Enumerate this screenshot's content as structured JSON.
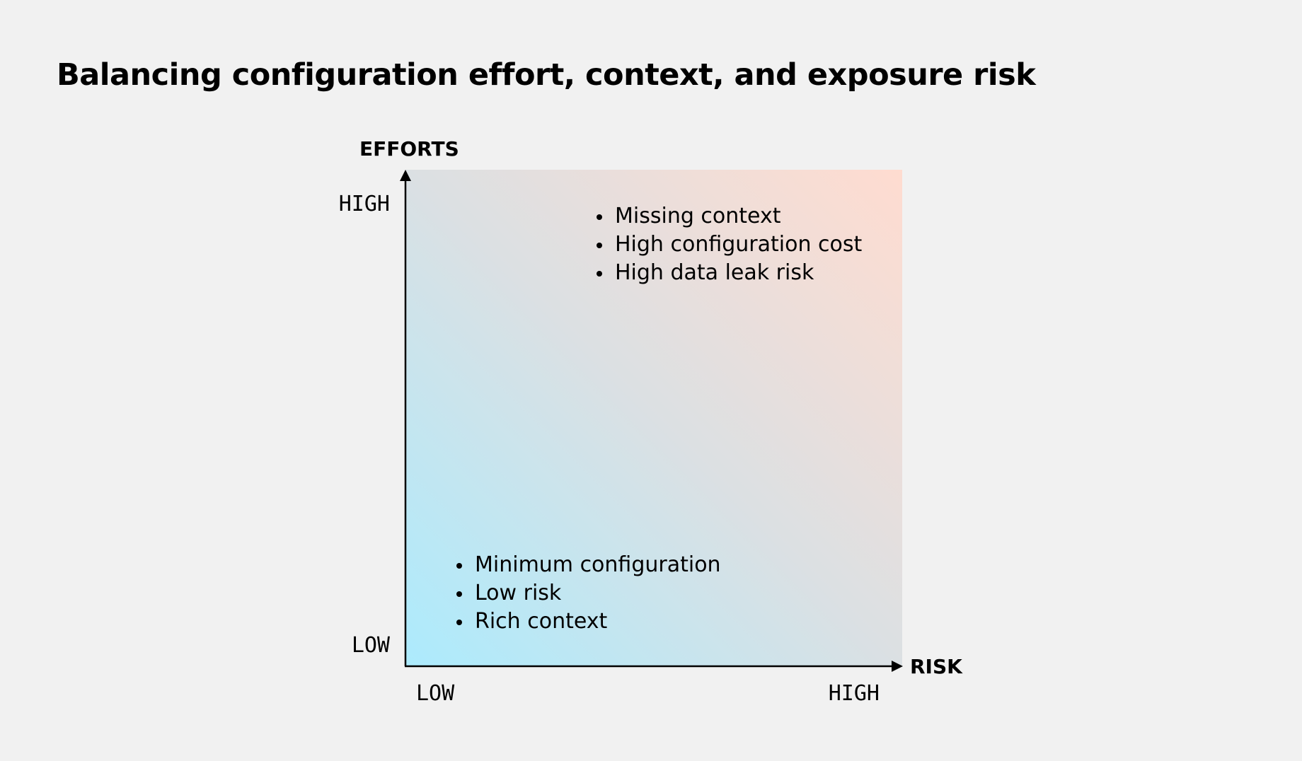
{
  "title": "Balancing configuration effort, context, and exposure risk",
  "axes": {
    "y_title": "EFFORTS",
    "x_title": "RISK",
    "y_high": "HIGH",
    "y_low": "LOW",
    "x_low": "LOW",
    "x_high": "HIGH"
  },
  "colors": {
    "low_corner": "#acebfd",
    "high_corner": "#ffdcd0",
    "background": "#f1f1f1"
  },
  "notes": {
    "high": [
      "Missing context",
      "High configuration cost",
      "High data leak risk"
    ],
    "low": [
      "Minimum configuration",
      "Low risk",
      "Rich context"
    ]
  }
}
